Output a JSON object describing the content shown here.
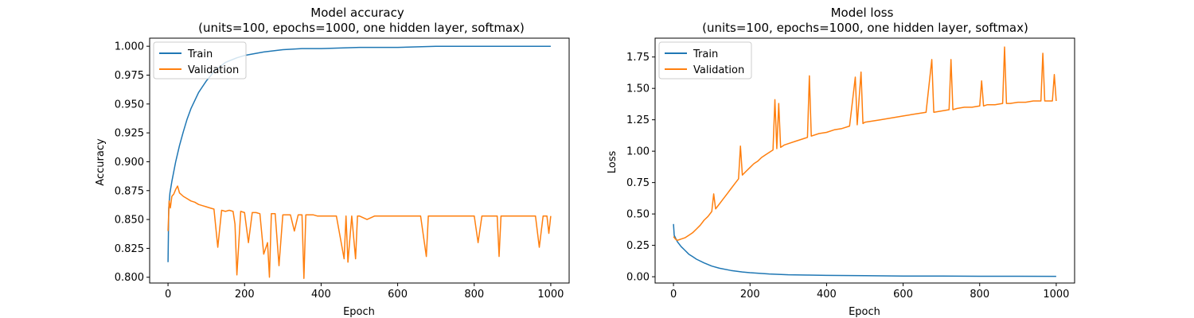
{
  "chart_data": [
    {
      "type": "line",
      "title": "Model accuracy",
      "subtitle": "(units=100, epochs=1000, one hidden layer, softmax)",
      "xlabel": "Epoch",
      "ylabel": "Accuracy",
      "xlim": [
        -48,
        1048
      ],
      "ylim": [
        0.795,
        1.007
      ],
      "xticks": [
        0,
        200,
        400,
        600,
        800,
        1000
      ],
      "yticks": [
        0.8,
        0.825,
        0.85,
        0.875,
        0.9,
        0.925,
        0.95,
        0.975,
        1.0
      ],
      "ytick_labels": [
        "0.800",
        "0.825",
        "0.850",
        "0.875",
        "0.900",
        "0.925",
        "0.950",
        "0.975",
        "1.000"
      ],
      "grid": false,
      "legend_position": "top-left",
      "series": [
        {
          "name": "Train",
          "color": "#1f77b4",
          "x": [
            0,
            2,
            5,
            10,
            20,
            30,
            40,
            50,
            60,
            80,
            100,
            120,
            150,
            180,
            200,
            250,
            300,
            350,
            400,
            500,
            600,
            700,
            800,
            900,
            1000
          ],
          "y": [
            0.813,
            0.86,
            0.873,
            0.883,
            0.9,
            0.914,
            0.926,
            0.937,
            0.946,
            0.96,
            0.97,
            0.978,
            0.986,
            0.99,
            0.992,
            0.995,
            0.997,
            0.998,
            0.998,
            0.999,
            0.999,
            1.0,
            1.0,
            1.0,
            1.0
          ]
        },
        {
          "name": "Validation",
          "color": "#ff7f0e",
          "x": [
            0,
            3,
            6,
            10,
            15,
            20,
            25,
            30,
            40,
            50,
            60,
            70,
            80,
            90,
            100,
            110,
            120,
            130,
            140,
            150,
            160,
            170,
            175,
            180,
            190,
            200,
            210,
            220,
            230,
            240,
            250,
            260,
            265,
            270,
            280,
            290,
            300,
            310,
            320,
            330,
            340,
            350,
            355,
            360,
            370,
            380,
            390,
            400,
            420,
            440,
            460,
            465,
            470,
            480,
            490,
            495,
            500,
            520,
            540,
            560,
            580,
            600,
            620,
            640,
            660,
            675,
            680,
            700,
            720,
            740,
            760,
            780,
            800,
            810,
            820,
            840,
            860,
            865,
            870,
            880,
            900,
            920,
            940,
            960,
            970,
            980,
            990,
            995,
            1000
          ],
          "y": [
            0.84,
            0.866,
            0.86,
            0.87,
            0.872,
            0.876,
            0.879,
            0.873,
            0.87,
            0.868,
            0.866,
            0.865,
            0.863,
            0.862,
            0.861,
            0.86,
            0.859,
            0.826,
            0.858,
            0.857,
            0.858,
            0.857,
            0.846,
            0.802,
            0.857,
            0.856,
            0.83,
            0.856,
            0.856,
            0.855,
            0.82,
            0.83,
            0.8,
            0.855,
            0.855,
            0.81,
            0.854,
            0.854,
            0.854,
            0.84,
            0.854,
            0.854,
            0.799,
            0.854,
            0.854,
            0.854,
            0.853,
            0.853,
            0.853,
            0.853,
            0.816,
            0.853,
            0.813,
            0.853,
            0.816,
            0.853,
            0.853,
            0.85,
            0.853,
            0.853,
            0.853,
            0.853,
            0.853,
            0.853,
            0.853,
            0.818,
            0.853,
            0.853,
            0.853,
            0.853,
            0.853,
            0.853,
            0.853,
            0.83,
            0.853,
            0.853,
            0.853,
            0.818,
            0.853,
            0.853,
            0.853,
            0.853,
            0.853,
            0.853,
            0.826,
            0.853,
            0.853,
            0.838,
            0.853
          ]
        }
      ]
    },
    {
      "type": "line",
      "title": "Model loss",
      "subtitle": "(units=100, epochs=1000, one hidden layer, softmax)",
      "xlabel": "Epoch",
      "ylabel": "Loss",
      "xlim": [
        -48,
        1048
      ],
      "ylim": [
        -0.05,
        1.9
      ],
      "xticks": [
        0,
        200,
        400,
        600,
        800,
        1000
      ],
      "yticks": [
        0.0,
        0.25,
        0.5,
        0.75,
        1.0,
        1.25,
        1.5,
        1.75
      ],
      "ytick_labels": [
        "0.00",
        "0.25",
        "0.50",
        "0.75",
        "1.00",
        "1.25",
        "1.50",
        "1.75"
      ],
      "grid": false,
      "legend_position": "top-left",
      "series": [
        {
          "name": "Train",
          "color": "#1f77b4",
          "x": [
            0,
            2,
            5,
            10,
            20,
            30,
            40,
            50,
            60,
            80,
            100,
            120,
            150,
            180,
            200,
            250,
            300,
            350,
            400,
            500,
            600,
            700,
            800,
            900,
            1000
          ],
          "y": [
            0.42,
            0.33,
            0.31,
            0.28,
            0.24,
            0.21,
            0.18,
            0.16,
            0.14,
            0.11,
            0.085,
            0.068,
            0.05,
            0.038,
            0.032,
            0.022,
            0.016,
            0.013,
            0.011,
            0.008,
            0.006,
            0.005,
            0.004,
            0.004,
            0.003
          ]
        },
        {
          "name": "Validation",
          "color": "#ff7f0e",
          "x": [
            0,
            5,
            10,
            15,
            20,
            30,
            40,
            50,
            60,
            70,
            80,
            90,
            100,
            105,
            110,
            120,
            130,
            140,
            150,
            160,
            170,
            175,
            180,
            190,
            200,
            210,
            220,
            230,
            240,
            250,
            260,
            265,
            270,
            275,
            280,
            290,
            300,
            320,
            340,
            350,
            355,
            360,
            380,
            400,
            420,
            440,
            460,
            475,
            480,
            490,
            495,
            500,
            520,
            540,
            560,
            580,
            600,
            620,
            640,
            660,
            675,
            680,
            700,
            720,
            725,
            730,
            740,
            760,
            780,
            800,
            805,
            810,
            820,
            840,
            860,
            865,
            870,
            880,
            900,
            920,
            940,
            960,
            965,
            970,
            980,
            990,
            995,
            1000
          ],
          "y": [
            0.32,
            0.3,
            0.29,
            0.295,
            0.3,
            0.31,
            0.33,
            0.35,
            0.38,
            0.41,
            0.45,
            0.48,
            0.52,
            0.66,
            0.54,
            0.58,
            0.62,
            0.66,
            0.7,
            0.74,
            0.78,
            1.04,
            0.81,
            0.84,
            0.87,
            0.9,
            0.92,
            0.95,
            0.97,
            0.99,
            1.01,
            1.41,
            1.02,
            1.38,
            1.03,
            1.05,
            1.06,
            1.08,
            1.1,
            1.11,
            1.6,
            1.12,
            1.14,
            1.15,
            1.17,
            1.18,
            1.2,
            1.59,
            1.21,
            1.63,
            1.22,
            1.23,
            1.24,
            1.25,
            1.26,
            1.27,
            1.28,
            1.29,
            1.3,
            1.31,
            1.73,
            1.31,
            1.32,
            1.33,
            1.73,
            1.33,
            1.34,
            1.35,
            1.35,
            1.36,
            1.56,
            1.36,
            1.37,
            1.37,
            1.38,
            1.83,
            1.38,
            1.38,
            1.39,
            1.39,
            1.4,
            1.4,
            1.78,
            1.4,
            1.4,
            1.4,
            1.61,
            1.4
          ]
        }
      ]
    }
  ]
}
